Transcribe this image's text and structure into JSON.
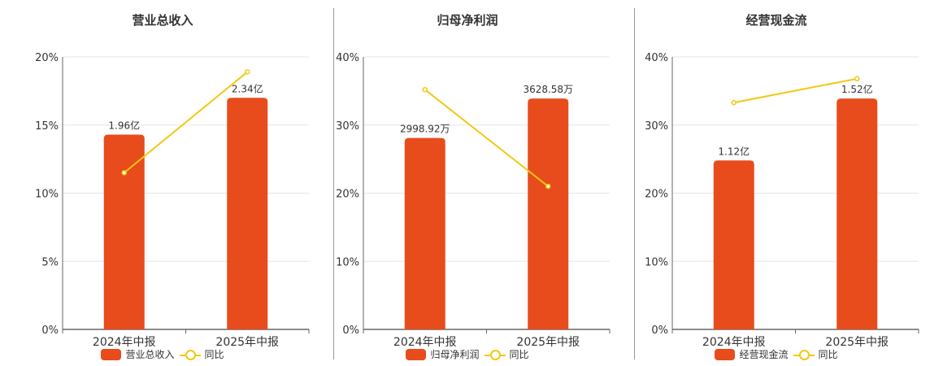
{
  "colors": {
    "bar": "#e84c1c",
    "line": "#f2c811",
    "grid": "#e0e6ee",
    "axis": "#666666"
  },
  "chart_data": [
    {
      "type": "bar",
      "title": "营业总收入",
      "categories": [
        "2024年中报",
        "2025年中报"
      ],
      "yticks": [
        "0%",
        "5%",
        "10%",
        "15%",
        "20%"
      ],
      "ylim": [
        0,
        20
      ],
      "series": [
        {
          "name": "营业总收入",
          "type": "bar",
          "values": [
            14.3,
            17.0
          ],
          "labels": [
            "1.96亿",
            "2.34亿"
          ]
        },
        {
          "name": "同比",
          "type": "line",
          "values": [
            11.5,
            18.9
          ]
        }
      ],
      "legend": [
        "营业总收入",
        "同比"
      ]
    },
    {
      "type": "bar",
      "title": "归母净利润",
      "categories": [
        "2024年中报",
        "2025年中报"
      ],
      "yticks": [
        "0%",
        "10%",
        "20%",
        "30%",
        "40%"
      ],
      "ylim": [
        0,
        40
      ],
      "series": [
        {
          "name": "归母净利润",
          "type": "bar",
          "values": [
            28.1,
            33.9
          ],
          "labels": [
            "2998.92万",
            "3628.58万"
          ]
        },
        {
          "name": "同比",
          "type": "line",
          "values": [
            35.2,
            21.0
          ]
        }
      ],
      "legend": [
        "归母净利润",
        "同比"
      ]
    },
    {
      "type": "bar",
      "title": "经营现金流",
      "categories": [
        "2024年中报",
        "2025年中报"
      ],
      "yticks": [
        "0%",
        "10%",
        "20%",
        "30%",
        "40%"
      ],
      "ylim": [
        0,
        40
      ],
      "series": [
        {
          "name": "经营现金流",
          "type": "bar",
          "values": [
            24.8,
            33.9
          ],
          "labels": [
            "1.12亿",
            "1.52亿"
          ]
        },
        {
          "name": "同比",
          "type": "line",
          "values": [
            33.3,
            36.8
          ]
        }
      ],
      "legend": [
        "经营现金流",
        "同比"
      ]
    }
  ]
}
